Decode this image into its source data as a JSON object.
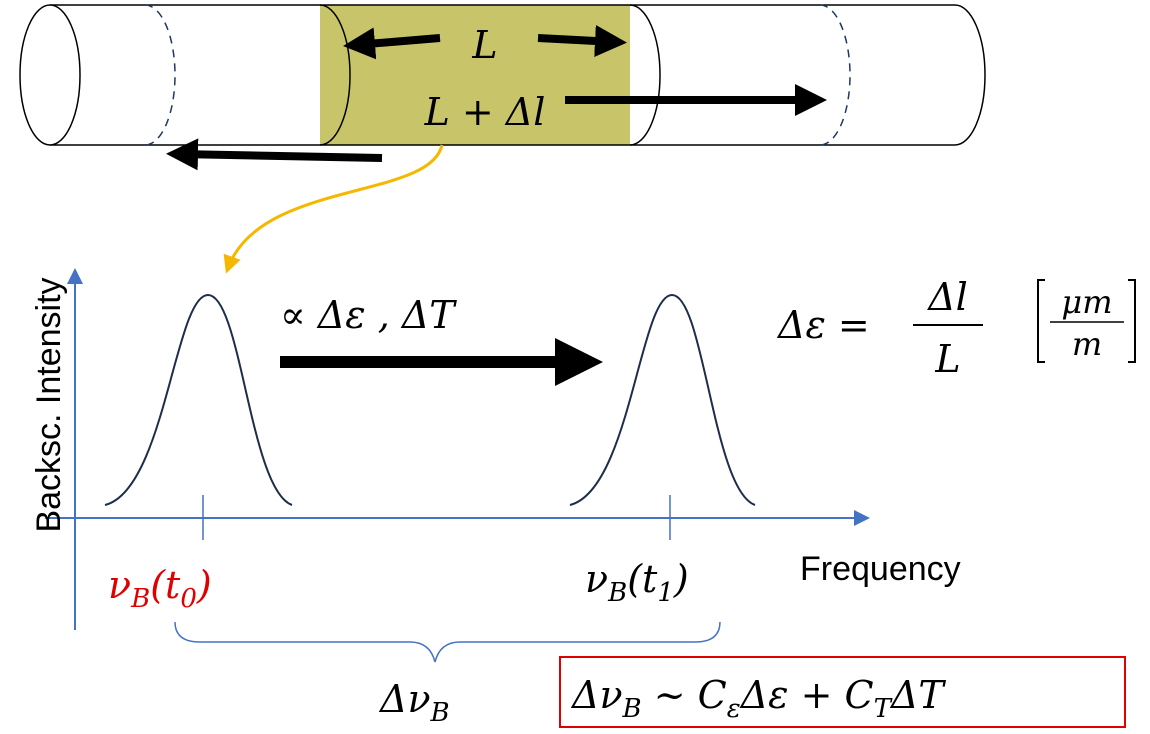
{
  "cable": {
    "length_label": [
      {
        "t": "L"
      }
    ],
    "stretched_label": [
      {
        "t": "L + Δl"
      }
    ]
  },
  "plot": {
    "y_axis_label": "Backsc. Intensity",
    "x_axis_label": "Frequency",
    "shift_label": [
      {
        "t": "∝ Δε , ΔT"
      }
    ],
    "peak_t0": [
      {
        "t": "ν"
      },
      {
        "t": "B",
        "sub": true
      },
      {
        "t": "(t"
      },
      {
        "t": "0",
        "sub": true
      },
      {
        "t": ")"
      }
    ],
    "peak_t1": [
      {
        "t": "ν"
      },
      {
        "t": "B",
        "sub": true
      },
      {
        "t": "(t"
      },
      {
        "t": "1",
        "sub": true
      },
      {
        "t": ")"
      }
    ],
    "brace_label": [
      {
        "t": "Δν"
      },
      {
        "t": "B",
        "sub": true
      }
    ]
  },
  "strain_definition": {
    "lhs": "Δε =",
    "numerator": "Δl",
    "denominator": "L",
    "unit_numerator": "μm",
    "unit_denominator": "m"
  },
  "relation": [
    {
      "t": "Δν"
    },
    {
      "t": "B",
      "sub": true
    },
    {
      "t": " ~ C"
    },
    {
      "t": "ε",
      "sub": true
    },
    {
      "t": "Δε + C"
    },
    {
      "t": "T",
      "sub": true
    },
    {
      "t": "ΔT"
    }
  ]
}
